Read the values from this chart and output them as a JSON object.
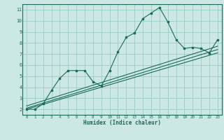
{
  "title": "",
  "xlabel": "Humidex (Indice chaleur)",
  "ylabel": "",
  "bg_color": "#cce8e4",
  "grid_color": "#99cccc",
  "line_color": "#1a6b5a",
  "xlim": [
    -0.5,
    23.5
  ],
  "ylim": [
    1.5,
    11.5
  ],
  "xticks": [
    0,
    1,
    2,
    3,
    4,
    5,
    6,
    7,
    8,
    9,
    10,
    11,
    12,
    13,
    14,
    15,
    16,
    17,
    18,
    19,
    20,
    21,
    22,
    23
  ],
  "yticks": [
    2,
    3,
    4,
    5,
    6,
    7,
    8,
    9,
    10,
    11
  ],
  "main_x": [
    0,
    1,
    2,
    3,
    4,
    5,
    6,
    7,
    8,
    9,
    10,
    11,
    12,
    13,
    14,
    15,
    16,
    17,
    18,
    19,
    20,
    21,
    22,
    23
  ],
  "main_y": [
    2.0,
    2.0,
    2.5,
    3.7,
    4.8,
    5.5,
    5.5,
    5.5,
    4.5,
    4.1,
    5.5,
    7.2,
    8.5,
    8.9,
    10.2,
    10.7,
    11.2,
    9.9,
    8.3,
    7.5,
    7.6,
    7.5,
    7.1,
    8.3
  ],
  "line2_x": [
    0,
    23
  ],
  "line2_y": [
    2.0,
    7.1
  ],
  "line3_x": [
    0,
    23
  ],
  "line3_y": [
    2.1,
    7.4
  ],
  "line4_x": [
    0,
    23
  ],
  "line4_y": [
    2.3,
    7.7
  ]
}
